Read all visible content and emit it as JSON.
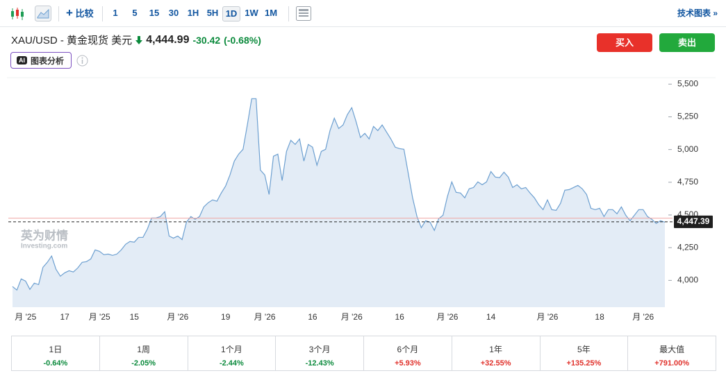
{
  "toolbar": {
    "compare": "比较",
    "intervals": [
      "1",
      "5",
      "15",
      "30",
      "1H",
      "5H",
      "1D",
      "1W",
      "1M"
    ],
    "selected_interval": "1D",
    "technical": "技术图表 »"
  },
  "header": {
    "symbol": "XAU/USD - 黄金现货 美元",
    "price": "4,444.99",
    "change": "-30.42",
    "change_pct": "(-0.68%)",
    "buy": "买入",
    "sell": "卖出",
    "ai_badge": "AI",
    "ai_button": "图表分析"
  },
  "chart_data": {
    "type": "area",
    "color": "#6c9fd0",
    "fill": "#e3ecf6",
    "ylim": [
      3795,
      5560
    ],
    "yticks": [
      {
        "value": 4000,
        "label": "4,000"
      },
      {
        "value": 4250,
        "label": "4,250"
      },
      {
        "value": 4500,
        "label": "4,500"
      },
      {
        "value": 4750,
        "label": "4,750"
      },
      {
        "value": 5000,
        "label": "5,000"
      },
      {
        "value": 5250,
        "label": "5,250"
      },
      {
        "value": 5500,
        "label": "5,500"
      }
    ],
    "last_price": {
      "value": 4447.39,
      "label": "4,447.39"
    },
    "previous_close": 4475.41,
    "categories": [
      null,
      null,
      null,
      "月 '25",
      null,
      null,
      null,
      null,
      null,
      null,
      null,
      null,
      "17",
      null,
      null,
      null,
      null,
      null,
      null,
      null,
      "月 '25",
      null,
      null,
      null,
      null,
      null,
      null,
      null,
      "15",
      null,
      null,
      null,
      null,
      null,
      null,
      null,
      null,
      null,
      "月 '26",
      null,
      null,
      null,
      null,
      null,
      null,
      null,
      null,
      null,
      null,
      "19",
      null,
      null,
      null,
      null,
      null,
      null,
      null,
      null,
      "月 '26",
      null,
      null,
      null,
      null,
      null,
      null,
      null,
      null,
      null,
      null,
      "16",
      null,
      null,
      null,
      null,
      null,
      null,
      null,
      null,
      "月 '26",
      null,
      null,
      null,
      null,
      null,
      null,
      null,
      null,
      null,
      null,
      "16",
      null,
      null,
      null,
      null,
      null,
      null,
      null,
      null,
      null,
      null,
      "月 '26",
      null,
      null,
      null,
      null,
      null,
      null,
      null,
      null,
      null,
      "14",
      null,
      null,
      null,
      null,
      null,
      null,
      null,
      null,
      null,
      null,
      null,
      null,
      "月 '26",
      null,
      null,
      null,
      null,
      null,
      null,
      null,
      null,
      null,
      null,
      null,
      "18",
      null,
      null,
      null,
      null,
      null,
      null,
      null,
      null,
      null,
      "月 '26",
      null,
      null,
      null,
      null,
      null
    ],
    "values": [
      3953,
      3926,
      4011,
      3995,
      3931,
      3979,
      3968,
      4100,
      4138,
      4186,
      4085,
      4032,
      4058,
      4074,
      4064,
      4095,
      4138,
      4143,
      4164,
      4233,
      4222,
      4196,
      4201,
      4191,
      4201,
      4233,
      4276,
      4297,
      4292,
      4329,
      4329,
      4392,
      4477,
      4477,
      4488,
      4525,
      4339,
      4323,
      4339,
      4312,
      4445,
      4488,
      4467,
      4488,
      4562,
      4594,
      4615,
      4605,
      4668,
      4721,
      4806,
      4912,
      4965,
      5002,
      5188,
      5389,
      5389,
      4843,
      4806,
      4657,
      4949,
      4965,
      4763,
      4986,
      5071,
      5039,
      5081,
      4912,
      5039,
      5018,
      4880,
      4986,
      5002,
      5145,
      5240,
      5161,
      5188,
      5267,
      5320,
      5214,
      5092,
      5124,
      5081,
      5177,
      5145,
      5188,
      5134,
      5081,
      5018,
      5007,
      5002,
      4816,
      4631,
      4488,
      4403,
      4456,
      4445,
      4382,
      4472,
      4498,
      4641,
      4753,
      4673,
      4668,
      4631,
      4700,
      4710,
      4753,
      4731,
      4753,
      4832,
      4790,
      4785,
      4827,
      4790,
      4710,
      4731,
      4700,
      4710,
      4668,
      4631,
      4578,
      4541,
      4615,
      4541,
      4535,
      4589,
      4689,
      4694,
      4710,
      4726,
      4700,
      4657,
      4551,
      4541,
      4551,
      4488,
      4541,
      4541,
      4509,
      4562,
      4498,
      4456,
      4498,
      4541,
      4541,
      4488,
      4467,
      4435,
      4456,
      4445
    ]
  },
  "watermark": {
    "brand": "英为财情",
    "site": "Investing.com"
  },
  "performance": {
    "periods": [
      "1日",
      "1周",
      "1个月",
      "3个月",
      "6个月",
      "1年",
      "5年",
      "最大值"
    ],
    "changes": [
      "-0.64%",
      "-2.05%",
      "-2.44%",
      "-12.43%",
      "+5.93%",
      "+32.55%",
      "+135.25%",
      "+791.00%"
    ]
  }
}
